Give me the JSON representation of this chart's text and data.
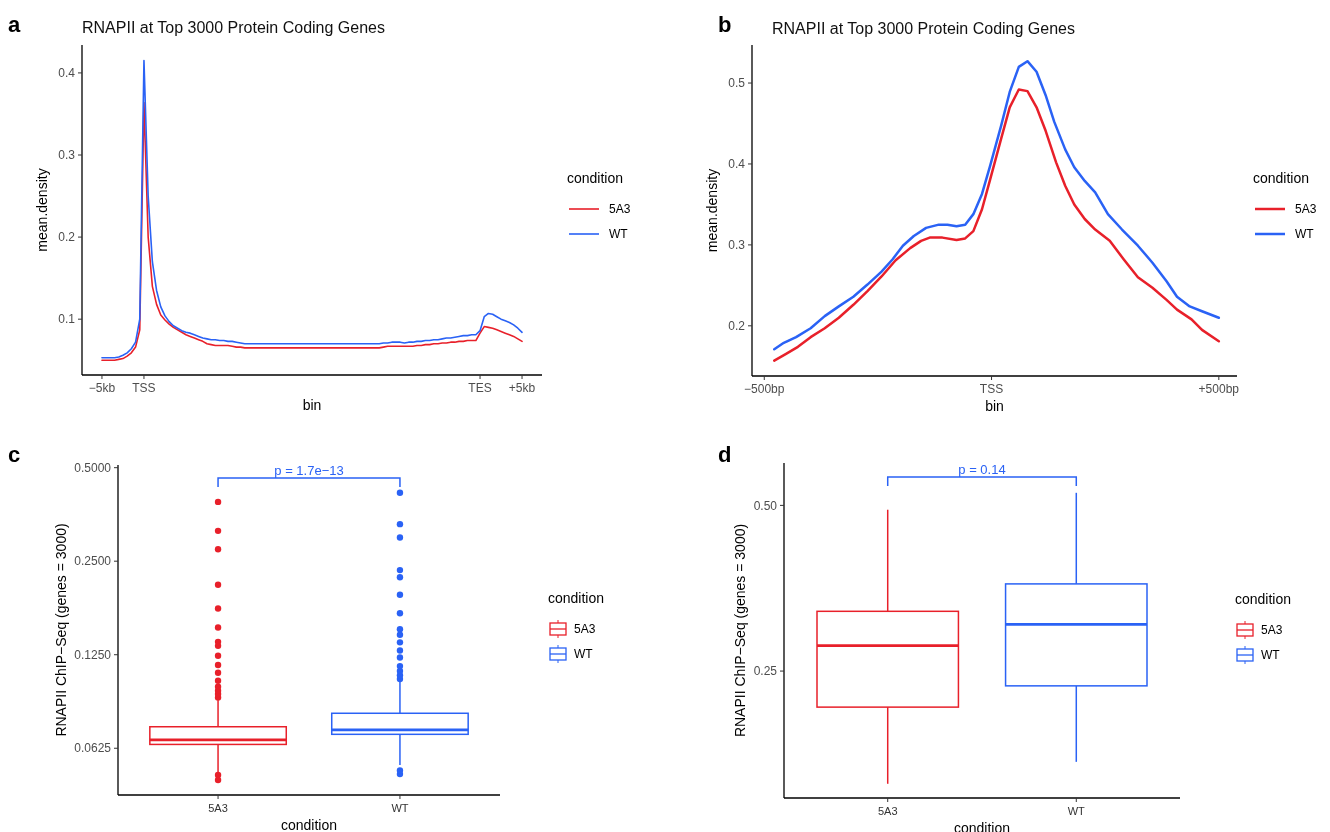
{
  "chart_data": [
    {
      "type": "line",
      "title": "RNAPII at Top 3000 Protein Coding Genes",
      "xlabel": "bin",
      "ylabel": "mean.density",
      "legend_title": "condition",
      "legend": "right",
      "annotations": [
        "a"
      ],
      "categories": [
        "−5kb",
        null,
        null,
        null,
        null,
        null,
        null,
        null,
        null,
        null,
        "TSS",
        null,
        null,
        null,
        null,
        null,
        null,
        null,
        null,
        null,
        null,
        null,
        null,
        null,
        null,
        null,
        null,
        null,
        null,
        null,
        null,
        null,
        null,
        null,
        null,
        null,
        null,
        null,
        null,
        null,
        null,
        null,
        null,
        null,
        null,
        null,
        null,
        null,
        null,
        null,
        null,
        null,
        null,
        null,
        null,
        null,
        null,
        null,
        null,
        null,
        null,
        null,
        null,
        null,
        null,
        null,
        null,
        null,
        null,
        null,
        null,
        null,
        null,
        null,
        null,
        null,
        null,
        null,
        null,
        null,
        null,
        null,
        null,
        null,
        null,
        null,
        null,
        null,
        null,
        null,
        "TES",
        null,
        null,
        null,
        null,
        null,
        null,
        null,
        null,
        null,
        "+5kb"
      ],
      "ylim": [
        0.032,
        0.434
      ],
      "yticks": [
        0.1,
        0.2,
        0.3,
        0.4
      ],
      "series": [
        {
          "name": "5A3",
          "color": "#e8202a",
          "values": [
            0.05,
            0.05,
            0.05,
            0.05,
            0.051,
            0.052,
            0.055,
            0.059,
            0.066,
            0.087,
            0.364,
            0.2,
            0.14,
            0.118,
            0.105,
            0.099,
            0.094,
            0.09,
            0.087,
            0.084,
            0.081,
            0.079,
            0.077,
            0.075,
            0.073,
            0.07,
            0.069,
            0.068,
            0.068,
            0.068,
            0.068,
            0.067,
            0.066,
            0.066,
            0.065,
            0.065,
            0.065,
            0.065,
            0.065,
            0.065,
            0.065,
            0.065,
            0.065,
            0.065,
            0.065,
            0.065,
            0.065,
            0.065,
            0.065,
            0.065,
            0.065,
            0.065,
            0.065,
            0.065,
            0.065,
            0.065,
            0.065,
            0.065,
            0.065,
            0.065,
            0.065,
            0.065,
            0.065,
            0.065,
            0.065,
            0.065,
            0.065,
            0.066,
            0.067,
            0.067,
            0.067,
            0.067,
            0.067,
            0.067,
            0.067,
            0.068,
            0.068,
            0.069,
            0.069,
            0.07,
            0.07,
            0.071,
            0.071,
            0.072,
            0.072,
            0.073,
            0.073,
            0.074,
            0.074,
            0.074,
            0.083,
            0.091,
            0.09,
            0.089,
            0.087,
            0.085,
            0.083,
            0.081,
            0.079,
            0.076,
            0.073
          ]
        },
        {
          "name": "WT",
          "color": "#2a62f5",
          "values": [
            0.053,
            0.053,
            0.053,
            0.053,
            0.054,
            0.056,
            0.059,
            0.064,
            0.072,
            0.1,
            0.415,
            0.25,
            0.17,
            0.135,
            0.115,
            0.104,
            0.097,
            0.092,
            0.089,
            0.086,
            0.084,
            0.083,
            0.081,
            0.079,
            0.077,
            0.076,
            0.075,
            0.075,
            0.074,
            0.074,
            0.073,
            0.073,
            0.072,
            0.071,
            0.07,
            0.07,
            0.07,
            0.07,
            0.07,
            0.07,
            0.07,
            0.07,
            0.07,
            0.07,
            0.07,
            0.07,
            0.07,
            0.07,
            0.07,
            0.07,
            0.07,
            0.07,
            0.07,
            0.07,
            0.07,
            0.07,
            0.07,
            0.07,
            0.07,
            0.07,
            0.07,
            0.07,
            0.07,
            0.07,
            0.07,
            0.07,
            0.07,
            0.071,
            0.071,
            0.072,
            0.072,
            0.072,
            0.071,
            0.072,
            0.072,
            0.073,
            0.073,
            0.074,
            0.074,
            0.075,
            0.075,
            0.076,
            0.077,
            0.077,
            0.078,
            0.079,
            0.08,
            0.08,
            0.081,
            0.081,
            0.086,
            0.103,
            0.107,
            0.106,
            0.103,
            0.1,
            0.098,
            0.096,
            0.093,
            0.089,
            0.084
          ]
        }
      ]
    },
    {
      "type": "line",
      "title": "RNAPII at Top 3000 Protein Coding Genes",
      "xlabel": "bin",
      "ylabel": "mean.density",
      "legend_title": "condition",
      "legend": "right",
      "annotations": [
        "b"
      ],
      "xlim": [
        -527,
        540
      ],
      "xticks": [
        {
          "value": -500,
          "label": "−500bp"
        },
        {
          "value": 0,
          "label": "TSS"
        },
        {
          "value": 500,
          "label": "+500bp"
        }
      ],
      "ylim": [
        0.138,
        0.547
      ],
      "yticks": [
        0.2,
        0.3,
        0.4,
        0.5
      ],
      "series": [
        {
          "name": "5A3",
          "color": "#e8202a",
          "x": [
            -478,
            -453,
            -426,
            -398,
            -367,
            -336,
            -304,
            -273,
            -242,
            -211,
            -179,
            -155,
            -136,
            -108,
            -77,
            -58,
            -40,
            -21,
            -3,
            21,
            40,
            60,
            79,
            99,
            119,
            142,
            162,
            182,
            205,
            228,
            260,
            291,
            322,
            354,
            385,
            408,
            440,
            463,
            500
          ],
          "values": [
            0.157,
            0.165,
            0.174,
            0.186,
            0.197,
            0.21,
            0.226,
            0.243,
            0.261,
            0.281,
            0.296,
            0.305,
            0.309,
            0.309,
            0.306,
            0.308,
            0.317,
            0.344,
            0.381,
            0.431,
            0.47,
            0.492,
            0.49,
            0.47,
            0.441,
            0.402,
            0.373,
            0.35,
            0.332,
            0.319,
            0.305,
            0.282,
            0.26,
            0.247,
            0.232,
            0.22,
            0.208,
            0.195,
            0.181
          ]
        },
        {
          "name": "WT",
          "color": "#2a62f5",
          "x": [
            -478,
            -457,
            -430,
            -398,
            -367,
            -336,
            -304,
            -273,
            -242,
            -218,
            -195,
            -171,
            -144,
            -116,
            -97,
            -77,
            -58,
            -40,
            -21,
            -3,
            21,
            40,
            60,
            79,
            99,
            119,
            138,
            162,
            182,
            205,
            228,
            256,
            287,
            322,
            354,
            385,
            408,
            436,
            463,
            500
          ],
          "values": [
            0.171,
            0.179,
            0.186,
            0.197,
            0.212,
            0.224,
            0.236,
            0.251,
            0.267,
            0.282,
            0.299,
            0.311,
            0.321,
            0.325,
            0.325,
            0.323,
            0.325,
            0.338,
            0.363,
            0.398,
            0.447,
            0.489,
            0.52,
            0.527,
            0.514,
            0.485,
            0.452,
            0.418,
            0.396,
            0.379,
            0.365,
            0.338,
            0.319,
            0.299,
            0.278,
            0.255,
            0.236,
            0.224,
            0.218,
            0.21
          ]
        }
      ]
    },
    {
      "type": "box",
      "xlabel": "condition",
      "ylabel": "RNAPII ChIP−Seq (genes = 3000)",
      "legend_title": "condition",
      "legend": "right",
      "log": true,
      "annotations": [
        "c",
        "p = 1.7e−13"
      ],
      "categories": [
        "5A3",
        "WT"
      ],
      "ylim": [
        0.0442,
        0.51
      ],
      "yticks": [
        0.0625,
        {
          "value": 0.125,
          "label": "0.1250"
        },
        {
          "value": 0.25,
          "label": "0.2500"
        },
        {
          "value": 0.5,
          "label": "0.5000"
        }
      ],
      "series": [
        {
          "name": "5A3",
          "color": "#e8202a",
          "boxes": [
            {
              "low": 0.052,
              "q1": 0.0643,
              "median": 0.0665,
              "q3": 0.0733,
              "high": 0.0895,
              "outliers": [
                0.0494,
                0.0513,
                0.0911,
                0.0934,
                0.0957,
                0.0986,
                0.1031,
                0.1094,
                0.1158,
                0.124,
                0.1335,
                0.1375,
                0.153,
                0.176,
                0.21,
                0.273,
                0.313,
                0.388
              ]
            },
            null
          ]
        },
        {
          "name": "WT",
          "color": "#2a62f5",
          "boxes": [
            null,
            {
              "low": 0.0552,
              "q1": 0.0693,
              "median": 0.0716,
              "q3": 0.081,
              "high": 0.1036,
              "outliers": [
                0.0516,
                0.053,
                0.1044,
                0.1074,
                0.1109,
                0.1149,
                0.1225,
                0.129,
                0.137,
                0.145,
                0.151,
                0.17,
                0.195,
                0.222,
                0.234,
                0.298,
                0.329,
                0.415
              ]
            }
          ]
        }
      ]
    },
    {
      "type": "box",
      "xlabel": "condition",
      "ylabel": "RNAPII ChIP−Seq (genes = 3000)",
      "legend_title": "condition",
      "legend": "right",
      "log": true,
      "annotations": [
        "d",
        "p = 0.14"
      ],
      "categories": [
        "5A3",
        "WT"
      ],
      "ylim": [
        0.147,
        0.597
      ],
      "yticks": [
        {
          "value": 0.25,
          "label": "0.25"
        },
        {
          "value": 0.5,
          "label": "0.50"
        }
      ],
      "series": [
        {
          "name": "5A3",
          "color": "#e8202a",
          "boxes": [
            {
              "low": 0.156,
              "q1": 0.215,
              "median": 0.278,
              "q3": 0.321,
              "high": 0.491
            },
            null
          ]
        },
        {
          "name": "WT",
          "color": "#2a62f5",
          "boxes": [
            null,
            {
              "low": 0.171,
              "q1": 0.235,
              "median": 0.304,
              "q3": 0.36,
              "high": 0.527
            }
          ]
        }
      ]
    }
  ]
}
